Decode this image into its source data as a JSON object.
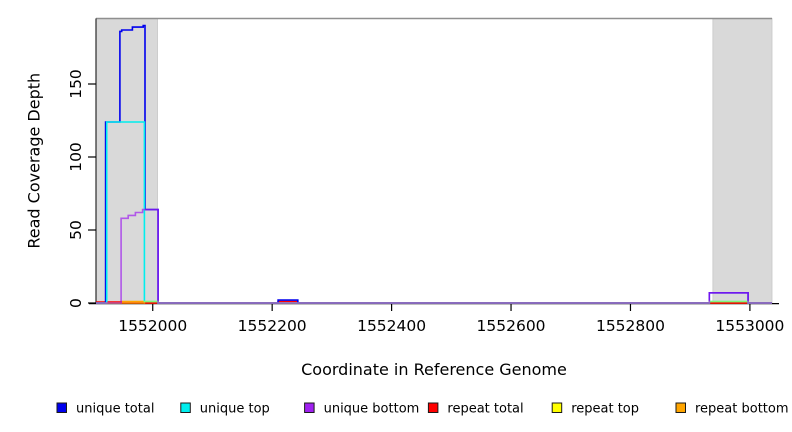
{
  "chart_data": {
    "type": "line",
    "title": "",
    "xlabel": "Coordinate in Reference Genome",
    "ylabel": "Read Coverage Depth",
    "xlim": [
      1551905,
      1553037
    ],
    "ylim": [
      0,
      195
    ],
    "x_ticks": [
      1552000,
      1552200,
      1552400,
      1552600,
      1552800,
      1553000
    ],
    "y_ticks": [
      0,
      50,
      100,
      150
    ],
    "grid": false,
    "legend_position": "bottom",
    "shaded_regions": [
      {
        "name": "repeat-region-left",
        "x0": 1551905,
        "x1": 1552008,
        "color": "#d9d9d9"
      },
      {
        "name": "repeat-region-right",
        "x0": 1552938,
        "x1": 1553037,
        "color": "#d9d9d9"
      }
    ],
    "series": [
      {
        "name": "repeat bottom",
        "color": "#FFA500",
        "opacity": 1,
        "points": [
          [
            1551905,
            0
          ],
          [
            1551947,
            0
          ],
          [
            1551947,
            1
          ],
          [
            1551986,
            1
          ],
          [
            1551986,
            0
          ],
          [
            1553037,
            0
          ]
        ]
      },
      {
        "name": "repeat total",
        "color": "#FF0000",
        "opacity": 1,
        "points": [
          [
            1551905,
            0.7
          ],
          [
            1551947,
            0.7
          ],
          [
            1551947,
            0
          ],
          [
            1552210,
            0
          ],
          [
            1552210,
            1
          ],
          [
            1552243,
            1
          ],
          [
            1552243,
            0
          ],
          [
            1553037,
            0
          ]
        ]
      },
      {
        "name": "unique total",
        "color": "#0000EE",
        "opacity": 1,
        "points": [
          [
            1551905,
            0
          ],
          [
            1551921,
            0
          ],
          [
            1551921,
            124
          ],
          [
            1551945,
            124
          ],
          [
            1551945,
            186
          ],
          [
            1551948,
            186
          ],
          [
            1551948,
            187
          ],
          [
            1551966,
            187
          ],
          [
            1551966,
            189
          ],
          [
            1551984,
            189
          ],
          [
            1551984,
            190
          ],
          [
            1551987,
            190
          ],
          [
            1551987,
            64
          ],
          [
            1552009,
            64
          ],
          [
            1552009,
            0
          ],
          [
            1552210,
            0
          ],
          [
            1552210,
            2
          ],
          [
            1552243,
            2
          ],
          [
            1552243,
            0
          ],
          [
            1552932,
            0
          ],
          [
            1552932,
            7
          ],
          [
            1552997,
            7
          ],
          [
            1552997,
            0
          ],
          [
            1553037,
            0
          ]
        ]
      },
      {
        "name": "unique top",
        "color": "#00EEEE",
        "opacity": 1,
        "points": [
          [
            1551905,
            0
          ],
          [
            1551923,
            0
          ],
          [
            1551923,
            124
          ],
          [
            1551986,
            124
          ],
          [
            1551986,
            1
          ],
          [
            1552009,
            1
          ],
          [
            1552009,
            0
          ],
          [
            1552932,
            0
          ],
          [
            1552932,
            1
          ],
          [
            1552997,
            1
          ],
          [
            1552997,
            0
          ],
          [
            1553037,
            0
          ]
        ]
      },
      {
        "name": "repeat top",
        "color": "#FFFF00",
        "opacity": 0.5,
        "points": [
          [
            1551905,
            0
          ],
          [
            1551986,
            0
          ],
          [
            1551986,
            1
          ],
          [
            1552009,
            1
          ],
          [
            1552009,
            0
          ],
          [
            1552932,
            0
          ],
          [
            1552932,
            1
          ],
          [
            1552997,
            1
          ],
          [
            1552997,
            0
          ],
          [
            1553037,
            0
          ]
        ]
      },
      {
        "name": "unique bottom",
        "color": "#A020F0",
        "opacity": 0.7,
        "points": [
          [
            1551905,
            0
          ],
          [
            1551947,
            0
          ],
          [
            1551947,
            58
          ],
          [
            1551959,
            58
          ],
          [
            1551959,
            60
          ],
          [
            1551971,
            60
          ],
          [
            1551971,
            62
          ],
          [
            1551983,
            62
          ],
          [
            1551983,
            64
          ],
          [
            1552009,
            64
          ],
          [
            1552009,
            0
          ],
          [
            1552932,
            0
          ],
          [
            1552932,
            7
          ],
          [
            1552997,
            7
          ],
          [
            1552997,
            0
          ],
          [
            1553037,
            0
          ]
        ]
      }
    ]
  },
  "legend": {
    "items": [
      {
        "label": "unique total",
        "color": "#0000EE"
      },
      {
        "label": "unique top",
        "color": "#00EEEE"
      },
      {
        "label": "unique bottom",
        "color": "#A020F0"
      },
      {
        "label": "repeat total",
        "color": "#FF0000"
      },
      {
        "label": "repeat top",
        "color": "#FFFF00"
      },
      {
        "label": "repeat bottom",
        "color": "#FFA500"
      }
    ]
  },
  "style_colors": {
    "plot_top_border": "#8f8f8f",
    "axis": "#000000",
    "region_fill": "#d9d9d9",
    "region_edge": "#c6c6c6"
  }
}
